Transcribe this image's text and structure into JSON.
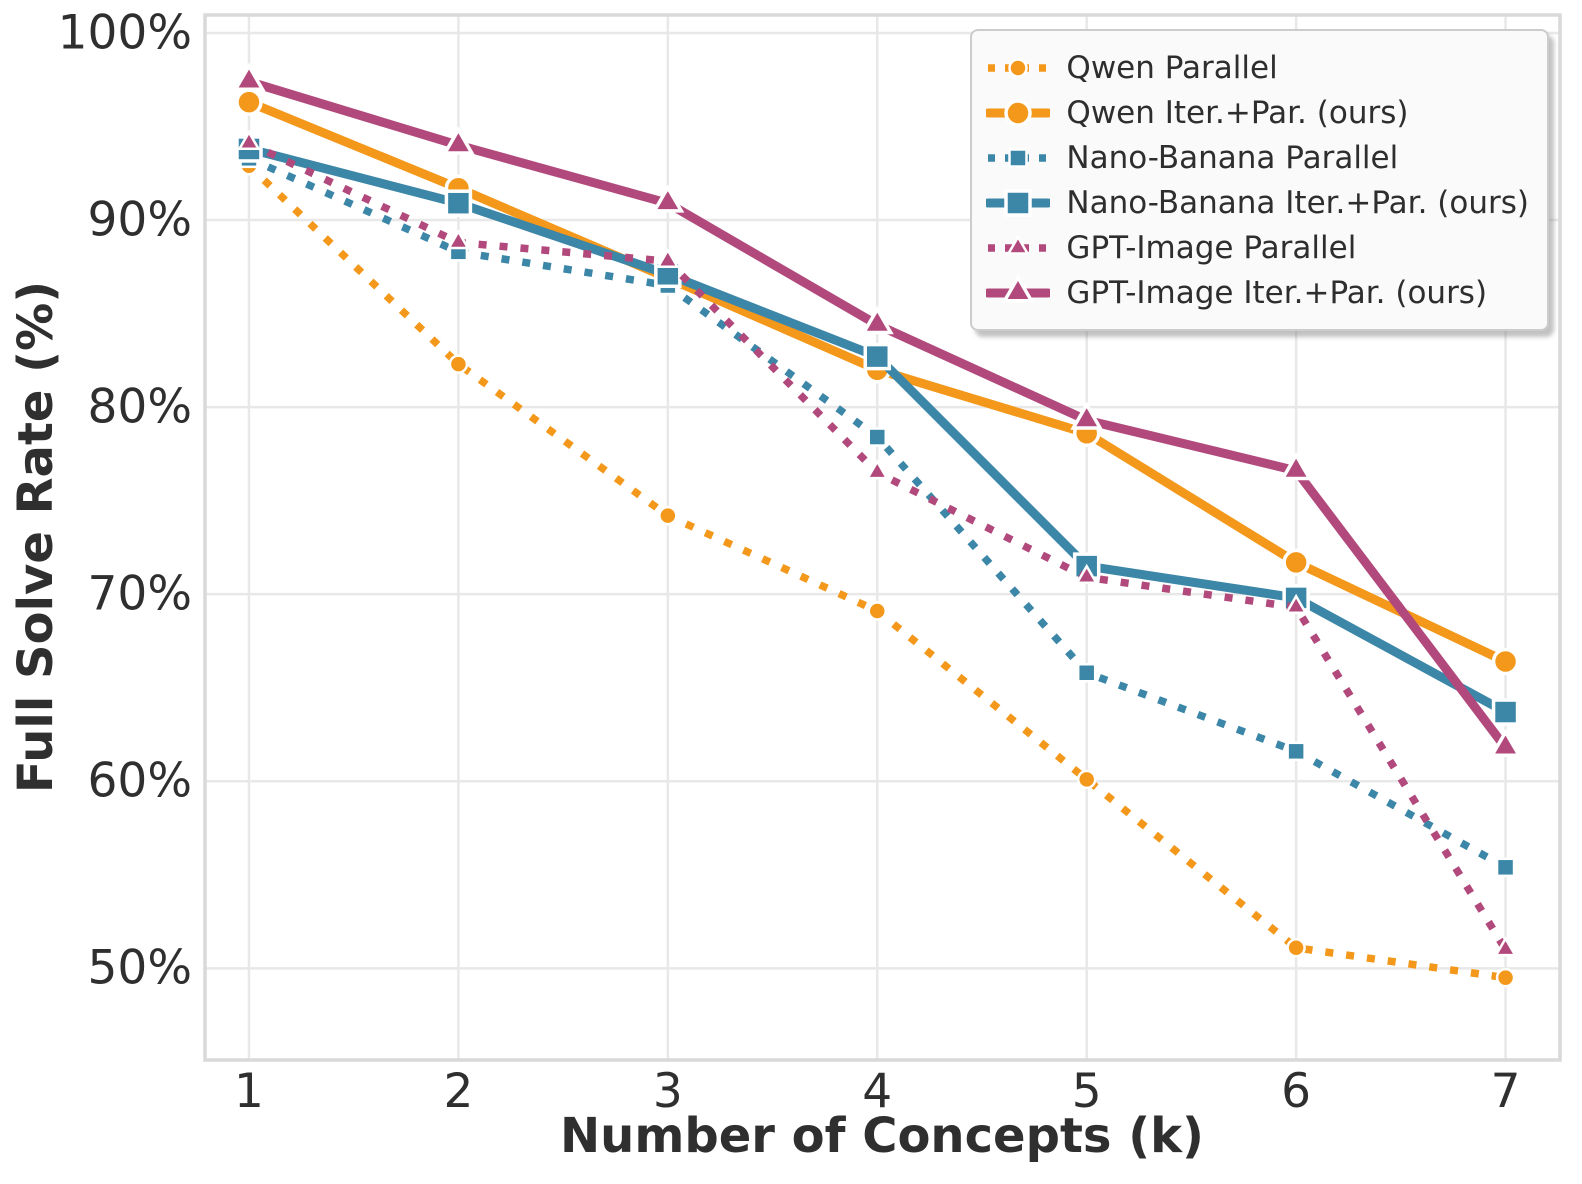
{
  "figure": {
    "background": "#ffffff",
    "grid_color": "#e8e8e8",
    "spine_color": "#d9d9d9",
    "text_color": "#2f2f2f"
  },
  "axes": {
    "x_label": "Number of Concepts (k)",
    "y_label": "Full Solve Rate (%)",
    "x_ticks": [
      1,
      2,
      3,
      4,
      5,
      6,
      7
    ],
    "x_tick_labels": [
      "1",
      "2",
      "3",
      "4",
      "5",
      "6",
      "7"
    ],
    "y_ticks": [
      100,
      90,
      80,
      70,
      60,
      50
    ],
    "y_tick_labels": [
      "100%",
      "90%",
      "80%",
      "70%",
      "60%",
      "50%"
    ],
    "x_range": [
      0.79,
      7.26
    ],
    "y_range": [
      45.1,
      100.96
    ]
  },
  "chart_data": {
    "type": "line",
    "title": "",
    "xlabel": "Number of Concepts (k)",
    "ylabel": "Full Solve Rate (%)",
    "x": [
      1,
      2,
      3,
      4,
      5,
      6,
      7
    ],
    "grid": true,
    "legend_position": "upper right",
    "series": [
      {
        "name": "Qwen Parallel",
        "color": "#F3981A",
        "line": "dotted",
        "marker": "circle",
        "values": [
          92.9,
          82.3,
          74.2,
          69.1,
          60.1,
          51.1,
          49.5
        ]
      },
      {
        "name": "Qwen Iter.+Par. (ours)",
        "color": "#F3981A",
        "line": "solid",
        "marker": "circle",
        "values": [
          96.3,
          91.7,
          86.9,
          82.0,
          78.6,
          71.7,
          66.4
        ]
      },
      {
        "name": "Nano-Banana Parallel",
        "color": "#3C86A8",
        "line": "dotted",
        "marker": "square",
        "values": [
          93.3,
          88.3,
          86.5,
          78.4,
          65.8,
          61.6,
          55.4
        ]
      },
      {
        "name": "Nano-Banana Iter.+Par. (ours)",
        "color": "#3C86A8",
        "line": "solid",
        "marker": "square",
        "values": [
          93.8,
          90.9,
          87.1,
          82.7,
          71.5,
          69.8,
          63.7
        ]
      },
      {
        "name": "GPT-Image Parallel",
        "color": "#B2497C",
        "line": "dotted",
        "marker": "triangle",
        "values": [
          94.1,
          88.8,
          87.8,
          76.5,
          70.9,
          69.3,
          51.0
        ]
      },
      {
        "name": "GPT-Image Iter.+Par. (ours)",
        "color": "#B2497C",
        "line": "solid",
        "marker": "triangle",
        "values": [
          97.4,
          94.0,
          90.9,
          84.4,
          79.3,
          76.6,
          61.8
        ]
      }
    ]
  }
}
